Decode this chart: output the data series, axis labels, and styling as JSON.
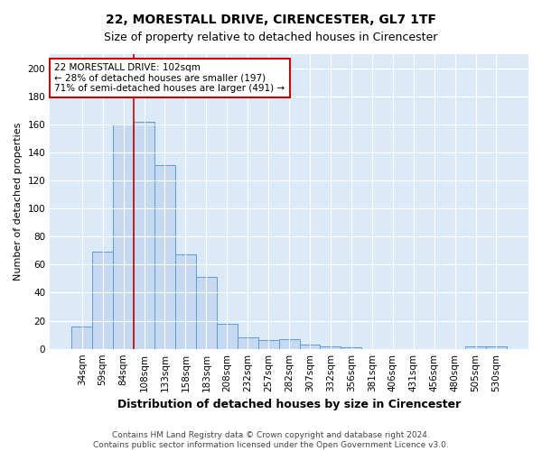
{
  "title": "22, MORESTALL DRIVE, CIRENCESTER, GL7 1TF",
  "subtitle": "Size of property relative to detached houses in Cirencester",
  "xlabel": "Distribution of detached houses by size in Cirencester",
  "ylabel": "Number of detached properties",
  "bar_labels": [
    "34sqm",
    "59sqm",
    "84sqm",
    "108sqm",
    "133sqm",
    "158sqm",
    "183sqm",
    "208sqm",
    "232sqm",
    "257sqm",
    "282sqm",
    "307sqm",
    "332sqm",
    "356sqm",
    "381sqm",
    "406sqm",
    "431sqm",
    "456sqm",
    "480sqm",
    "505sqm",
    "530sqm"
  ],
  "bar_values": [
    16,
    69,
    160,
    162,
    131,
    67,
    51,
    18,
    8,
    6,
    7,
    3,
    2,
    1,
    0,
    0,
    0,
    0,
    0,
    2,
    2
  ],
  "bar_color": "#c5d9f0",
  "bar_edge_color": "#5b9bd5",
  "vline_color": "#cc0000",
  "vline_x": 2.5,
  "annotation_text": "22 MORESTALL DRIVE: 102sqm\n← 28% of detached houses are smaller (197)\n71% of semi-detached houses are larger (491) →",
  "annotation_box_color": "#ffffff",
  "annotation_box_edge": "#cc0000",
  "ylim": [
    0,
    210
  ],
  "yticks": [
    0,
    20,
    40,
    60,
    80,
    100,
    120,
    140,
    160,
    180,
    200
  ],
  "background_color": "#dce9f7",
  "footer_line1": "Contains HM Land Registry data © Crown copyright and database right 2024.",
  "footer_line2": "Contains public sector information licensed under the Open Government Licence v3.0.",
  "title_fontsize": 10,
  "subtitle_fontsize": 9,
  "xlabel_fontsize": 9,
  "ylabel_fontsize": 8,
  "tick_fontsize": 7.5,
  "annotation_fontsize": 7.5,
  "footer_fontsize": 6.5
}
